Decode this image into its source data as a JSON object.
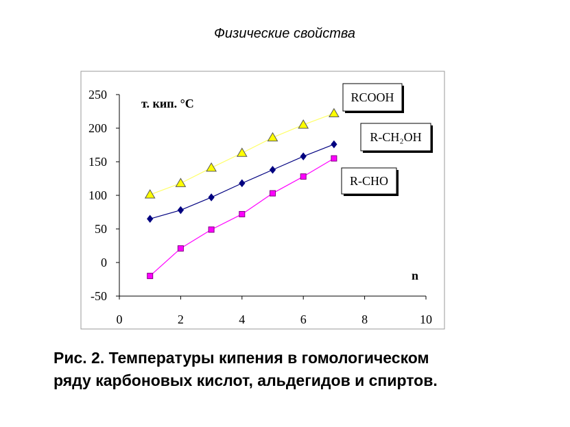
{
  "header": "Физические свойства",
  "caption": [
    "Рис. 2. Температуры кипения в гомологическом",
    "ряду карбоновых кислот, альдегидов и спиртов."
  ],
  "chart_data": {
    "type": "line",
    "y_label": "т. кип. °C",
    "x_label": "n",
    "x": [
      1,
      2,
      3,
      4,
      5,
      6,
      7
    ],
    "series": [
      {
        "name": "RCOOH",
        "color": "#ffff00",
        "values": [
          101,
          118,
          141,
          163,
          186,
          205,
          222
        ]
      },
      {
        "name": "R-CH₂OH",
        "color": "#000080",
        "values": [
          65,
          78,
          97,
          118,
          138,
          158,
          176
        ]
      },
      {
        "name": "R-CHO",
        "color": "#ff00ff",
        "values": [
          -20,
          21,
          49,
          72,
          103,
          128,
          155
        ]
      }
    ],
    "xlim": [
      0,
      10
    ],
    "xticks": [
      0,
      2,
      4,
      6,
      8,
      10
    ],
    "ylim": [
      -50,
      250
    ],
    "yticks": [
      -50,
      0,
      50,
      100,
      150,
      200,
      250
    ]
  }
}
